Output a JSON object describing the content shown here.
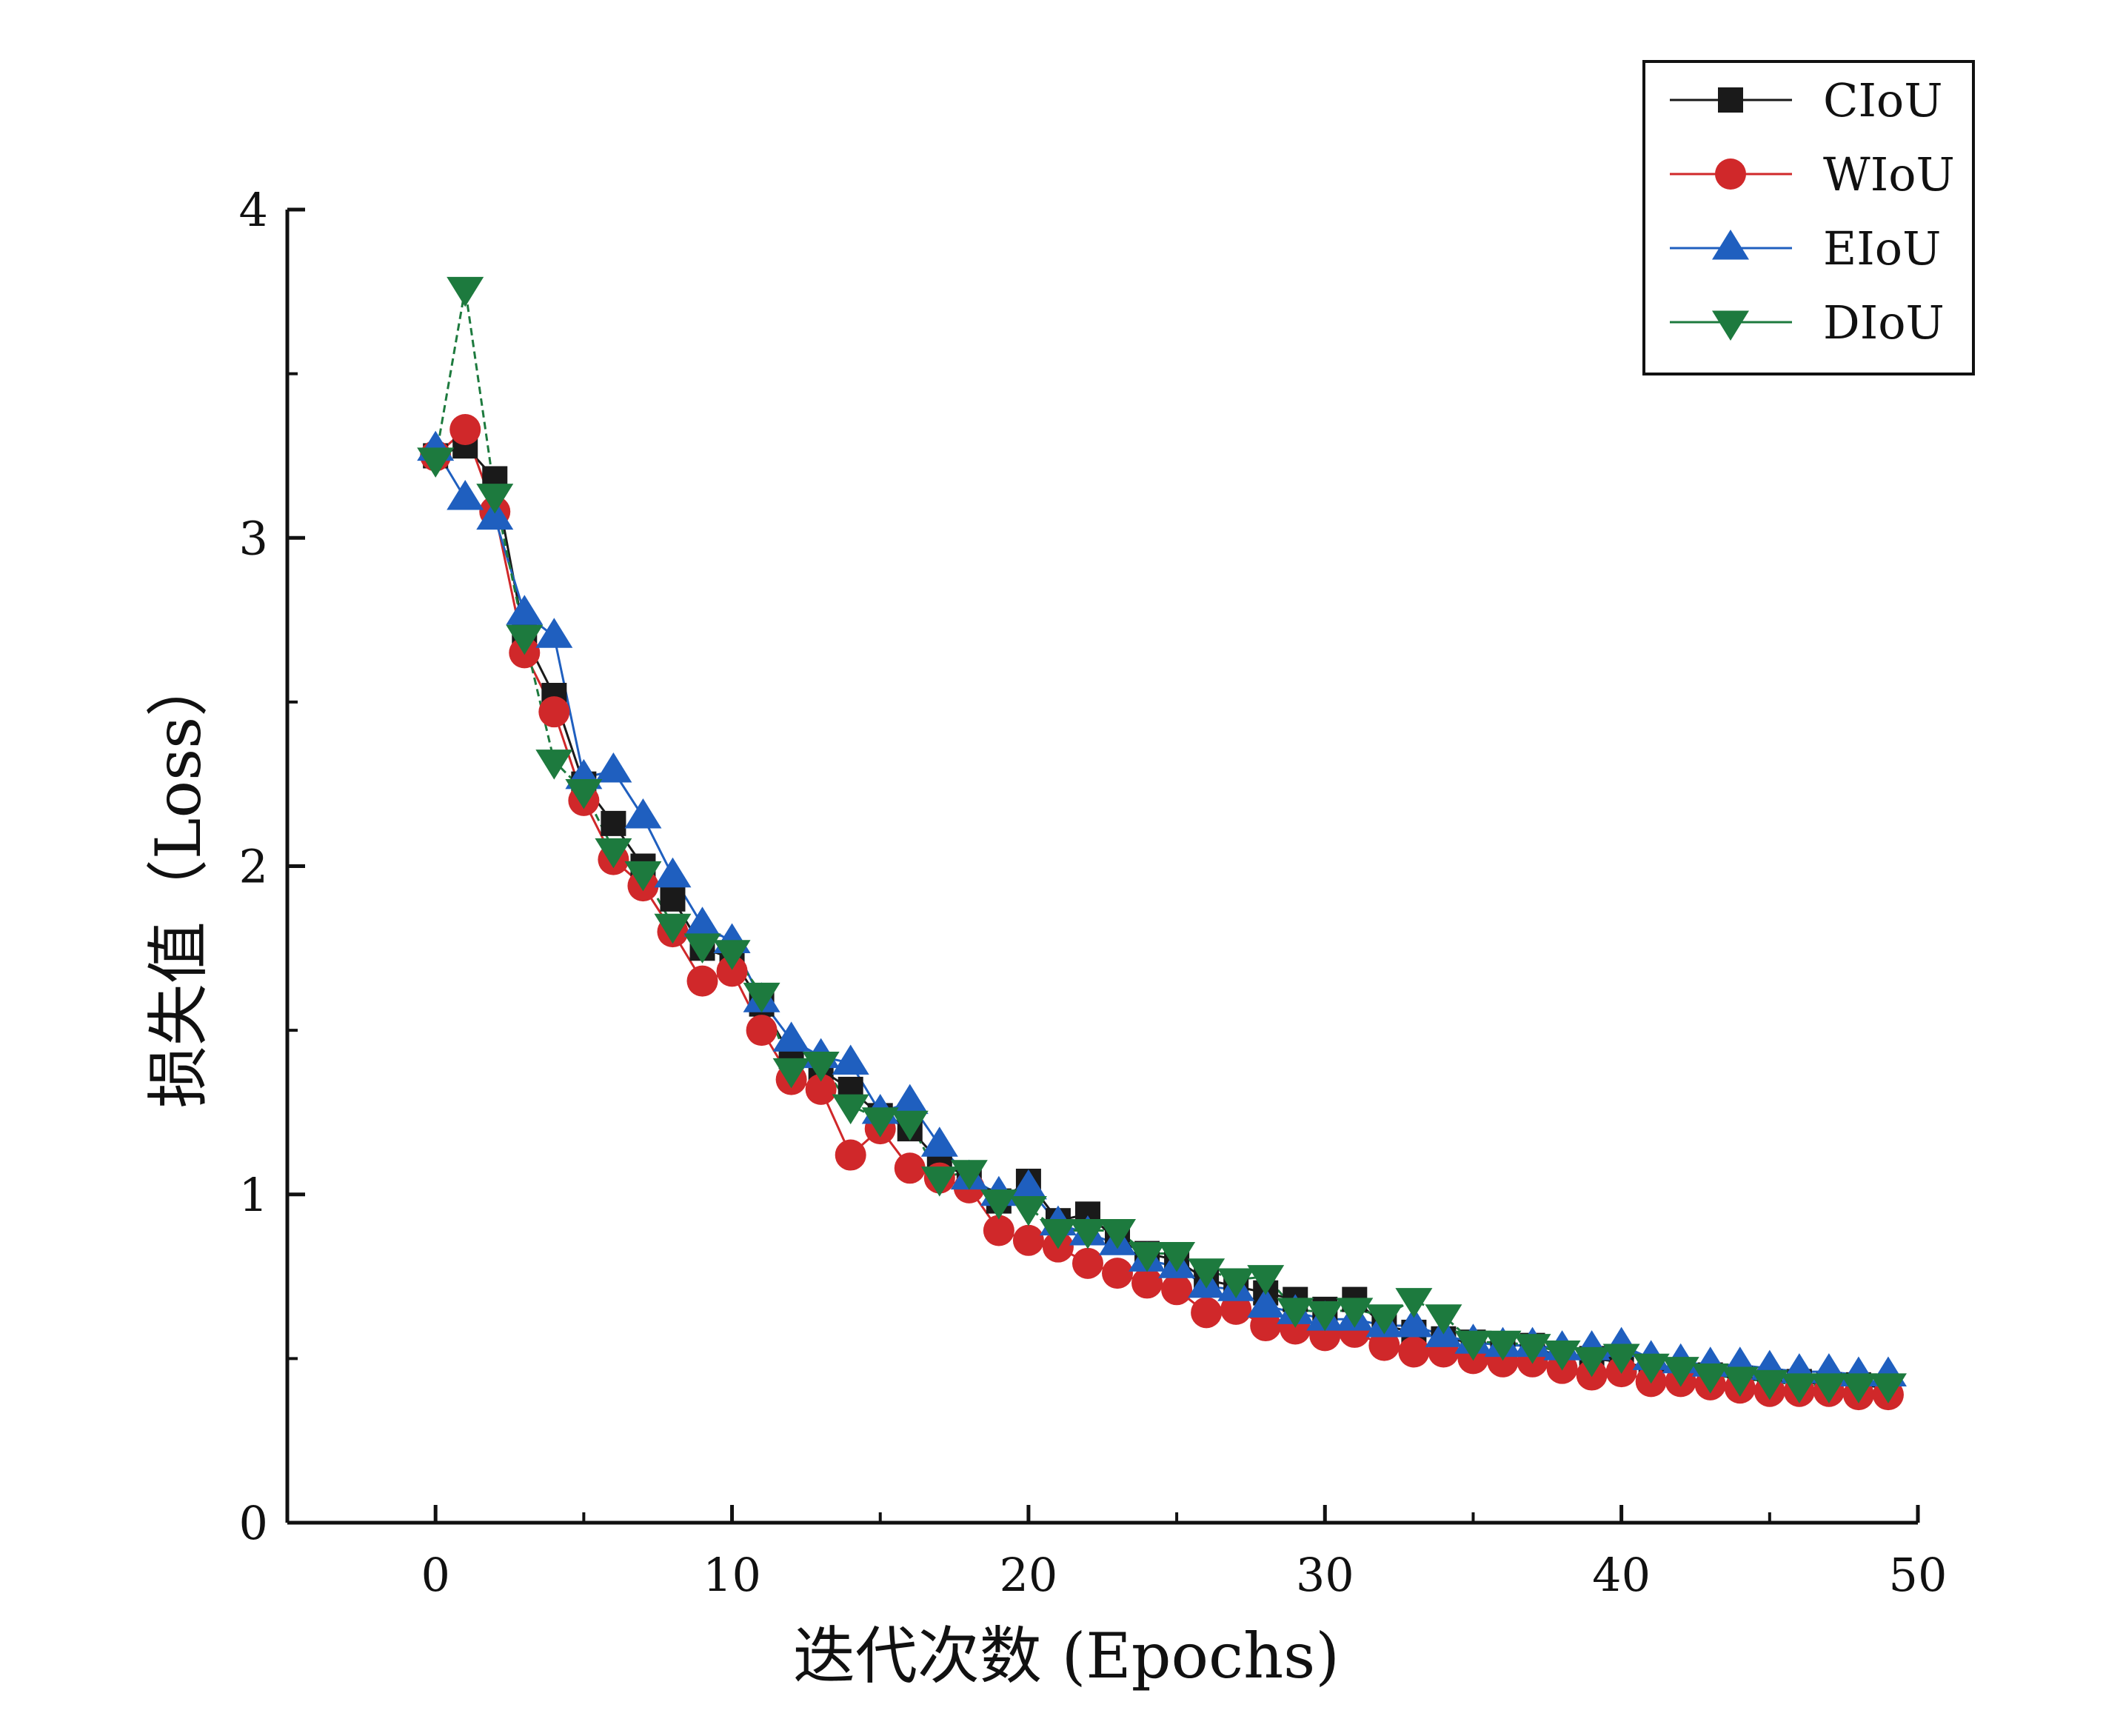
{
  "chart_data": {
    "type": "scatter",
    "xlabel": "迭代次数 (Epochs)",
    "ylabel": "损失值（Loss）",
    "xlim": [
      -5,
      50
    ],
    "ylim": [
      0,
      4
    ],
    "xticks": [
      0,
      10,
      20,
      30,
      40,
      50
    ],
    "yticks": [
      0,
      1,
      2,
      3,
      4
    ],
    "legend_position": "top-right",
    "series": [
      {
        "name": "CIoU",
        "marker": "square",
        "color": "#1a1a1a",
        "x": [
          0,
          1,
          2,
          3,
          4,
          5,
          6,
          7,
          8,
          9,
          10,
          11,
          12,
          13,
          14,
          15,
          16,
          17,
          18,
          19,
          20,
          21,
          22,
          23,
          24,
          25,
          26,
          27,
          28,
          29,
          30,
          31,
          32,
          33,
          34,
          35,
          36,
          37,
          38,
          39,
          40,
          41,
          42,
          43,
          44,
          45,
          46,
          47,
          48,
          49
        ],
        "values": [
          3.25,
          3.28,
          3.18,
          2.7,
          2.52,
          2.25,
          2.13,
          2.0,
          1.9,
          1.75,
          1.72,
          1.58,
          1.42,
          1.38,
          1.32,
          1.24,
          1.2,
          1.1,
          1.05,
          0.98,
          1.04,
          0.92,
          0.94,
          0.86,
          0.82,
          0.8,
          0.74,
          0.72,
          0.7,
          0.68,
          0.65,
          0.68,
          0.6,
          0.58,
          0.56,
          0.55,
          0.54,
          0.54,
          0.5,
          0.5,
          0.49,
          0.47,
          0.46,
          0.45,
          0.44,
          0.43,
          0.43,
          0.42,
          0.42,
          0.41
        ]
      },
      {
        "name": "WIoU",
        "marker": "circle",
        "color": "#d0282a",
        "x": [
          0,
          1,
          2,
          3,
          4,
          5,
          6,
          7,
          8,
          9,
          10,
          11,
          12,
          13,
          14,
          15,
          16,
          17,
          18,
          19,
          20,
          21,
          22,
          23,
          24,
          25,
          26,
          27,
          28,
          29,
          30,
          31,
          32,
          33,
          34,
          35,
          36,
          37,
          38,
          39,
          40,
          41,
          42,
          43,
          44,
          45,
          46,
          47,
          48,
          49
        ],
        "values": [
          3.25,
          3.33,
          3.08,
          2.65,
          2.47,
          2.2,
          2.02,
          1.94,
          1.8,
          1.65,
          1.68,
          1.5,
          1.35,
          1.32,
          1.12,
          1.2,
          1.08,
          1.05,
          1.02,
          0.89,
          0.86,
          0.84,
          0.79,
          0.76,
          0.73,
          0.71,
          0.64,
          0.65,
          0.6,
          0.59,
          0.57,
          0.58,
          0.54,
          0.52,
          0.52,
          0.5,
          0.49,
          0.49,
          0.47,
          0.45,
          0.46,
          0.43,
          0.43,
          0.42,
          0.41,
          0.4,
          0.4,
          0.4,
          0.39,
          0.39
        ]
      },
      {
        "name": "EIoU",
        "marker": "triangle-up",
        "color": "#1f5fbf",
        "x": [
          0,
          1,
          2,
          3,
          4,
          5,
          6,
          7,
          8,
          9,
          10,
          11,
          12,
          13,
          14,
          15,
          16,
          17,
          18,
          19,
          20,
          21,
          22,
          23,
          24,
          25,
          26,
          27,
          28,
          29,
          30,
          31,
          32,
          33,
          34,
          35,
          36,
          37,
          38,
          39,
          40,
          41,
          42,
          43,
          44,
          45,
          46,
          47,
          48,
          49
        ],
        "values": [
          3.27,
          3.12,
          3.06,
          2.77,
          2.7,
          2.27,
          2.29,
          2.15,
          1.97,
          1.82,
          1.77,
          1.59,
          1.47,
          1.42,
          1.4,
          1.25,
          1.28,
          1.15,
          1.05,
          1.0,
          1.02,
          0.91,
          0.88,
          0.85,
          0.8,
          0.78,
          0.72,
          0.71,
          0.66,
          0.64,
          0.62,
          0.62,
          0.6,
          0.6,
          0.57,
          0.55,
          0.54,
          0.54,
          0.53,
          0.53,
          0.54,
          0.5,
          0.49,
          0.48,
          0.48,
          0.47,
          0.46,
          0.46,
          0.45,
          0.45
        ]
      },
      {
        "name": "DIoU",
        "marker": "triangle-down",
        "color": "#1d7a3e",
        "x": [
          0,
          1,
          2,
          3,
          4,
          5,
          6,
          7,
          8,
          9,
          10,
          11,
          12,
          13,
          14,
          15,
          16,
          17,
          18,
          19,
          20,
          21,
          22,
          23,
          24,
          25,
          26,
          27,
          28,
          29,
          30,
          31,
          32,
          33,
          34,
          35,
          36,
          37,
          38,
          39,
          40,
          41,
          42,
          43,
          44,
          45,
          46,
          47,
          48,
          49
        ],
        "values": [
          3.24,
          3.76,
          3.13,
          2.7,
          2.32,
          2.23,
          2.05,
          1.98,
          1.82,
          1.76,
          1.74,
          1.61,
          1.38,
          1.4,
          1.27,
          1.23,
          1.22,
          1.05,
          1.07,
          0.98,
          0.96,
          0.89,
          0.89,
          0.89,
          0.82,
          0.82,
          0.77,
          0.74,
          0.75,
          0.65,
          0.64,
          0.65,
          0.63,
          0.68,
          0.63,
          0.55,
          0.55,
          0.54,
          0.52,
          0.5,
          0.51,
          0.48,
          0.47,
          0.45,
          0.44,
          0.43,
          0.42,
          0.42,
          0.42,
          0.42
        ]
      }
    ]
  }
}
